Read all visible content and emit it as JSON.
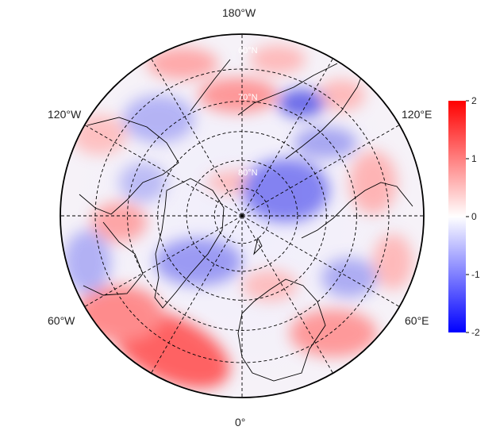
{
  "map": {
    "projection": "north-polar-stereographic",
    "field": "anomaly",
    "longitude_labels": {
      "top": "180°W",
      "bottom": "0°",
      "upper_left": "120°W",
      "upper_right": "120°E",
      "lower_left": "60°W",
      "lower_right": "60°E"
    },
    "latitude_ring_labels": [
      "60°N",
      "70°N",
      "80°N"
    ],
    "longitude_lines_every_deg": 30,
    "latitude_rings_deg": [
      40,
      50,
      60,
      70,
      80
    ],
    "outer_boundary_lat": 30
  },
  "colorbar": {
    "min": -2,
    "max": 2,
    "tick_values": [
      2,
      1,
      0,
      -1,
      -2
    ],
    "tick_labels": [
      "2",
      "1",
      "0",
      "-1",
      "-2"
    ],
    "colors": {
      "low": "#0000ff",
      "mid": "#ffffff",
      "high": "#ff0000"
    }
  }
}
